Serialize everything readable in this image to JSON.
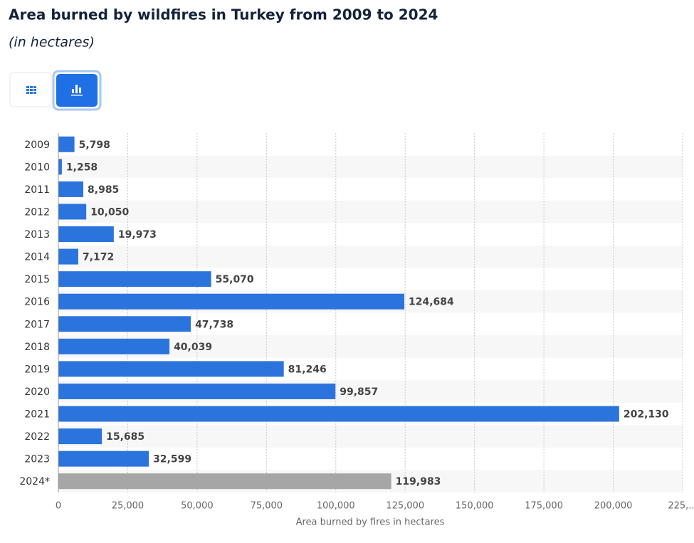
{
  "chart_data": {
    "type": "barh",
    "title": "Area burned by wildfires in Turkey from 2009 to 2024",
    "subtitle": "(in hectares)",
    "xlabel": "Area burned by fires in hectares",
    "categories": [
      "2009",
      "2010",
      "2011",
      "2012",
      "2013",
      "2014",
      "2015",
      "2016",
      "2017",
      "2018",
      "2019",
      "2020",
      "2021",
      "2022",
      "2023",
      "2024*"
    ],
    "values": [
      5798,
      1258,
      8985,
      10050,
      19973,
      7172,
      55070,
      124684,
      47738,
      40039,
      81246,
      99857,
      202130,
      15685,
      32599,
      119983
    ],
    "value_labels": [
      "5,798",
      "1,258",
      "8,985",
      "10,050",
      "19,973",
      "7,172",
      "55,070",
      "124,684",
      "47,738",
      "40,039",
      "81,246",
      "99,857",
      "202,130",
      "15,685",
      "32,599",
      "119,983"
    ],
    "colors": [
      "#2b74de",
      "#2b74de",
      "#2b74de",
      "#2b74de",
      "#2b74de",
      "#2b74de",
      "#2b74de",
      "#2b74de",
      "#2b74de",
      "#2b74de",
      "#2b74de",
      "#2b74de",
      "#2b74de",
      "#2b74de",
      "#2b74de",
      "#a6a6a6"
    ],
    "xlim": [
      0,
      225000
    ],
    "xticks": [
      0,
      {
        "value": 25000,
        "label": "25,000"
      },
      {
        "value": 50000,
        "label": "50,000"
      },
      {
        "value": 75000,
        "label": "75,000"
      },
      {
        "value": 100000,
        "label": "100,000"
      },
      {
        "value": 125000,
        "label": "125,000"
      },
      {
        "value": 150000,
        "label": "150,000"
      },
      {
        "value": 175000,
        "label": "175,000"
      },
      {
        "value": 200000,
        "label": "200,000"
      },
      {
        "value": 225000,
        "label": "225,..."
      }
    ],
    "grid": true
  }
}
